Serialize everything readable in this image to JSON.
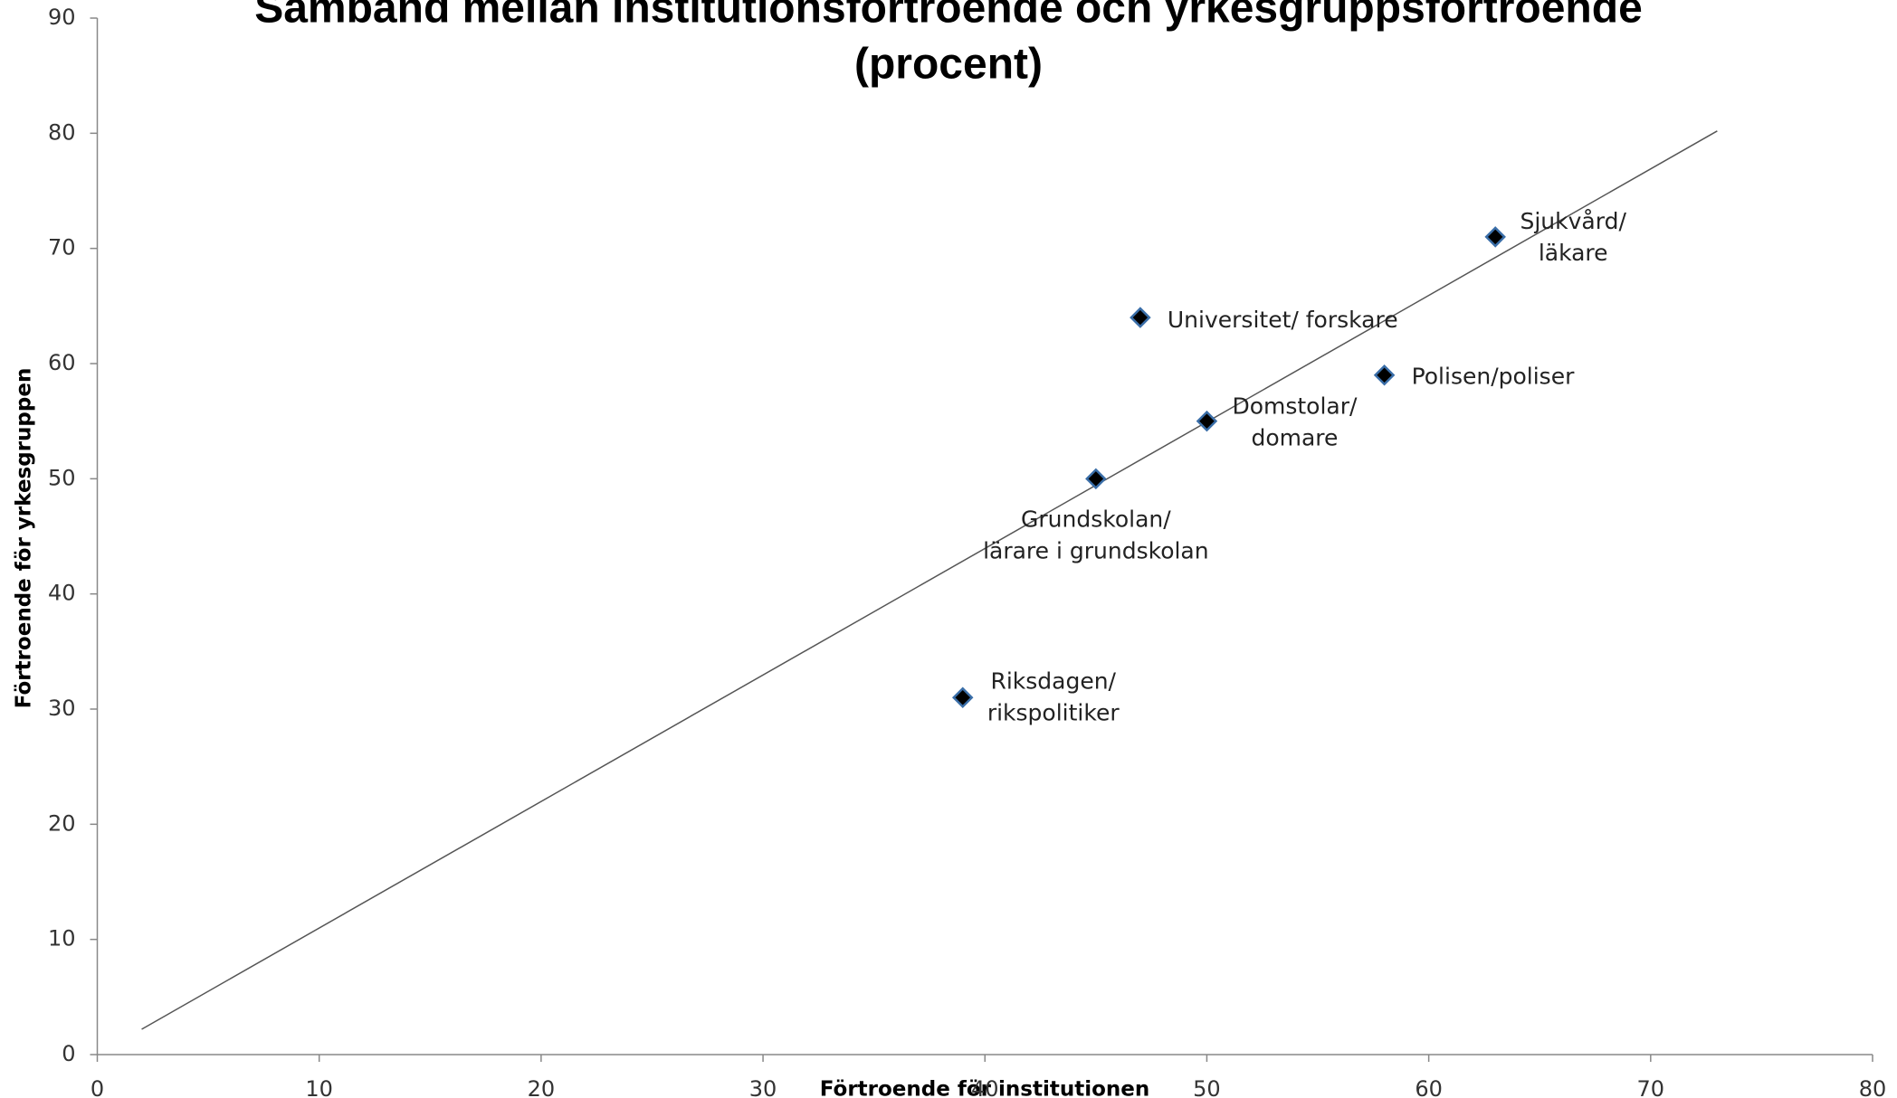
{
  "chart_data": {
    "type": "scatter",
    "title": [
      "Samband mellan institutionsförtroende och yrkesgruppsförtroende",
      "(procent)"
    ],
    "x_label": "Förtroende för institutionen",
    "y_label": "Förtroende för yrkesgruppen",
    "x": [
      39,
      45,
      50,
      47,
      58,
      63
    ],
    "values": [
      31,
      50,
      55,
      64,
      59,
      71
    ],
    "point_labels": [
      [
        "Riksdagen/",
        "rikspolitiker"
      ],
      [
        "Grundskolan/",
        "lärare i grundskolan"
      ],
      [
        "Domstolar/",
        "domare"
      ],
      [
        "Universitet/ forskare"
      ],
      [
        "Polisen/poliser"
      ],
      [
        "Sjukvård/",
        "läkare"
      ]
    ],
    "color": "#000000",
    "trendline": {
      "x": [
        2,
        73
      ],
      "y": [
        2.2,
        80.2
      ],
      "color": "#555555"
    },
    "xlim": [
      0,
      80
    ],
    "xticks": [
      0,
      10,
      20,
      30,
      40,
      50,
      60,
      70,
      80
    ],
    "ylim": [
      0,
      90
    ],
    "yticks": [
      0,
      10,
      20,
      30,
      40,
      50,
      60,
      70,
      80,
      90
    ],
    "grid": false
  }
}
